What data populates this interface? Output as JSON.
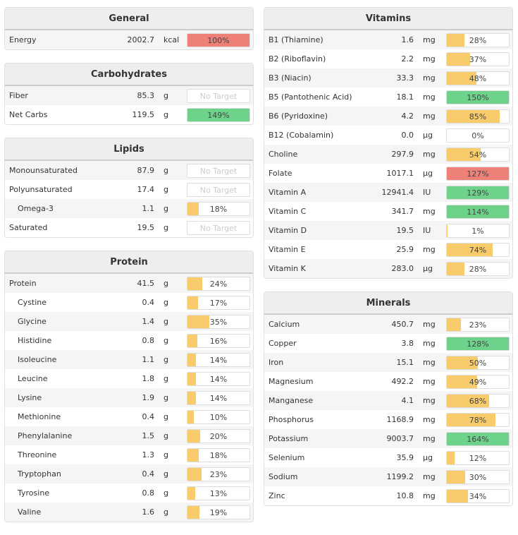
{
  "colors": {
    "yellow": "#f8cb6b",
    "green": "#6dd38b",
    "red": "#ef8077"
  },
  "no_target_label": "No Target",
  "left": [
    {
      "title": "General",
      "rows": [
        {
          "name": "Energy",
          "value": "2002.7",
          "unit": "kcal",
          "pct": 100,
          "label": "100%",
          "fill": "red"
        }
      ]
    },
    {
      "title": "Carbohydrates",
      "rows": [
        {
          "name": "Fiber",
          "value": "85.3",
          "unit": "g",
          "pct": null
        },
        {
          "name": "Net Carbs",
          "value": "119.5",
          "unit": "g",
          "pct": 149,
          "label": "149%",
          "fill": "green"
        }
      ]
    },
    {
      "title": "Lipids",
      "rows": [
        {
          "name": "Monounsaturated",
          "value": "87.9",
          "unit": "g",
          "pct": null
        },
        {
          "name": "Polyunsaturated",
          "value": "17.4",
          "unit": "g",
          "pct": null
        },
        {
          "name": "Omega-3",
          "value": "1.1",
          "unit": "g",
          "pct": 18,
          "label": "18%",
          "fill": "yellow",
          "sub": true
        },
        {
          "name": "Saturated",
          "value": "19.5",
          "unit": "g",
          "pct": null
        }
      ]
    },
    {
      "title": "Protein",
      "rows": [
        {
          "name": "Protein",
          "value": "41.5",
          "unit": "g",
          "pct": 24,
          "label": "24%",
          "fill": "yellow"
        },
        {
          "name": "Cystine",
          "value": "0.4",
          "unit": "g",
          "pct": 17,
          "label": "17%",
          "fill": "yellow",
          "sub": true
        },
        {
          "name": "Glycine",
          "value": "1.4",
          "unit": "g",
          "pct": 35,
          "label": "35%",
          "fill": "yellow",
          "sub": true
        },
        {
          "name": "Histidine",
          "value": "0.8",
          "unit": "g",
          "pct": 16,
          "label": "16%",
          "fill": "yellow",
          "sub": true
        },
        {
          "name": "Isoleucine",
          "value": "1.1",
          "unit": "g",
          "pct": 14,
          "label": "14%",
          "fill": "yellow",
          "sub": true
        },
        {
          "name": "Leucine",
          "value": "1.8",
          "unit": "g",
          "pct": 14,
          "label": "14%",
          "fill": "yellow",
          "sub": true
        },
        {
          "name": "Lysine",
          "value": "1.9",
          "unit": "g",
          "pct": 14,
          "label": "14%",
          "fill": "yellow",
          "sub": true
        },
        {
          "name": "Methionine",
          "value": "0.4",
          "unit": "g",
          "pct": 10,
          "label": "10%",
          "fill": "yellow",
          "sub": true
        },
        {
          "name": "Phenylalanine",
          "value": "1.5",
          "unit": "g",
          "pct": 20,
          "label": "20%",
          "fill": "yellow",
          "sub": true
        },
        {
          "name": "Threonine",
          "value": "1.3",
          "unit": "g",
          "pct": 18,
          "label": "18%",
          "fill": "yellow",
          "sub": true
        },
        {
          "name": "Tryptophan",
          "value": "0.4",
          "unit": "g",
          "pct": 23,
          "label": "23%",
          "fill": "yellow",
          "sub": true
        },
        {
          "name": "Tyrosine",
          "value": "0.8",
          "unit": "g",
          "pct": 13,
          "label": "13%",
          "fill": "yellow",
          "sub": true
        },
        {
          "name": "Valine",
          "value": "1.6",
          "unit": "g",
          "pct": 19,
          "label": "19%",
          "fill": "yellow",
          "sub": true
        }
      ]
    }
  ],
  "right": [
    {
      "title": "Vitamins",
      "rows": [
        {
          "name": "B1 (Thiamine)",
          "value": "1.6",
          "unit": "mg",
          "pct": 28,
          "label": "28%",
          "fill": "yellow"
        },
        {
          "name": "B2 (Riboflavin)",
          "value": "2.2",
          "unit": "mg",
          "pct": 37,
          "label": "37%",
          "fill": "yellow"
        },
        {
          "name": "B3 (Niacin)",
          "value": "33.3",
          "unit": "mg",
          "pct": 48,
          "label": "48%",
          "fill": "yellow"
        },
        {
          "name": "B5 (Pantothenic Acid)",
          "value": "18.1",
          "unit": "mg",
          "pct": 150,
          "label": "150%",
          "fill": "green"
        },
        {
          "name": "B6 (Pyridoxine)",
          "value": "4.2",
          "unit": "mg",
          "pct": 85,
          "label": "85%",
          "fill": "yellow"
        },
        {
          "name": "B12 (Cobalamin)",
          "value": "0.0",
          "unit": "µg",
          "pct": 0,
          "label": "0%",
          "fill": "yellow"
        },
        {
          "name": "Choline",
          "value": "297.9",
          "unit": "mg",
          "pct": 54,
          "label": "54%",
          "fill": "yellow"
        },
        {
          "name": "Folate",
          "value": "1017.1",
          "unit": "µg",
          "pct": 127,
          "label": "127%",
          "fill": "red"
        },
        {
          "name": "Vitamin A",
          "value": "12941.4",
          "unit": "IU",
          "pct": 129,
          "label": "129%",
          "fill": "green"
        },
        {
          "name": "Vitamin C",
          "value": "341.7",
          "unit": "mg",
          "pct": 114,
          "label": "114%",
          "fill": "green"
        },
        {
          "name": "Vitamin D",
          "value": "19.5",
          "unit": "IU",
          "pct": 1,
          "label": "1%",
          "fill": "yellow"
        },
        {
          "name": "Vitamin E",
          "value": "25.9",
          "unit": "mg",
          "pct": 74,
          "label": "74%",
          "fill": "yellow"
        },
        {
          "name": "Vitamin K",
          "value": "283.0",
          "unit": "µg",
          "pct": 28,
          "label": "28%",
          "fill": "yellow"
        }
      ]
    },
    {
      "title": "Minerals",
      "rows": [
        {
          "name": "Calcium",
          "value": "450.7",
          "unit": "mg",
          "pct": 23,
          "label": "23%",
          "fill": "yellow"
        },
        {
          "name": "Copper",
          "value": "3.8",
          "unit": "mg",
          "pct": 128,
          "label": "128%",
          "fill": "green"
        },
        {
          "name": "Iron",
          "value": "15.1",
          "unit": "mg",
          "pct": 50,
          "label": "50%",
          "fill": "yellow"
        },
        {
          "name": "Magnesium",
          "value": "492.2",
          "unit": "mg",
          "pct": 49,
          "label": "49%",
          "fill": "yellow"
        },
        {
          "name": "Manganese",
          "value": "4.1",
          "unit": "mg",
          "pct": 68,
          "label": "68%",
          "fill": "yellow"
        },
        {
          "name": "Phosphorus",
          "value": "1168.9",
          "unit": "mg",
          "pct": 78,
          "label": "78%",
          "fill": "yellow"
        },
        {
          "name": "Potassium",
          "value": "9003.7",
          "unit": "mg",
          "pct": 164,
          "label": "164%",
          "fill": "green"
        },
        {
          "name": "Selenium",
          "value": "35.9",
          "unit": "µg",
          "pct": 12,
          "label": "12%",
          "fill": "yellow"
        },
        {
          "name": "Sodium",
          "value": "1199.2",
          "unit": "mg",
          "pct": 30,
          "label": "30%",
          "fill": "yellow"
        },
        {
          "name": "Zinc",
          "value": "10.8",
          "unit": "mg",
          "pct": 34,
          "label": "34%",
          "fill": "yellow"
        }
      ]
    }
  ]
}
